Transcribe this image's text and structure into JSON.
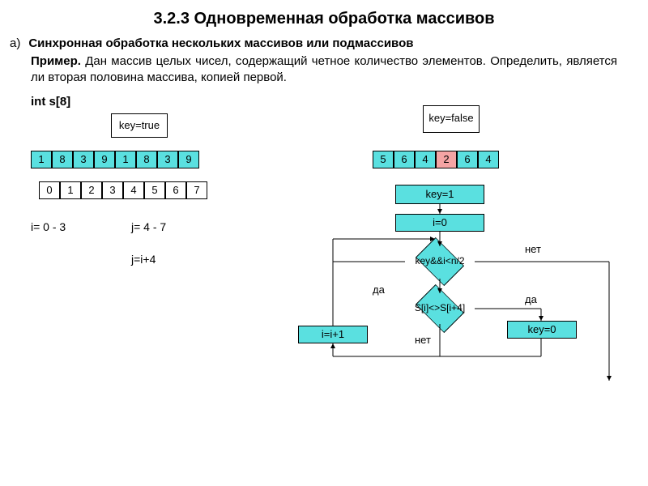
{
  "title": "3.2.3 Одновременная обработка массивов",
  "item_marker": "а)",
  "subtitle": "Синхронная обработка нескольких массивов или подмассивов",
  "example_label": "Пример.",
  "example_text": "Дан массив целых чисел, содержащий четное количество элементов. Определить, является ли вторая половина массива, копией первой.",
  "int_decl": "int s[8]",
  "key_true_label": "key=true",
  "key_false_label": "key=false",
  "array1": [
    "1",
    "8",
    "3",
    "9",
    "1",
    "8",
    "3",
    "9"
  ],
  "indices": [
    "0",
    "1",
    "2",
    "3",
    "4",
    "5",
    "6",
    "7"
  ],
  "array2": [
    "5",
    "6",
    "4",
    "2",
    "6",
    "4"
  ],
  "array2_highlight_index": 3,
  "i_range": "i= 0 - 3",
  "j_range": "j= 4 - 7",
  "j_formula": "j=i+4",
  "flow": {
    "key1": "key=1",
    "i0": "i=0",
    "cond1": "key&&i<n/2",
    "cond2": "S[i]<>S[i+4]",
    "inc": "i=i+1",
    "key0": "key=0",
    "yes": "да",
    "no": "нет"
  },
  "colors": {
    "cyan": "#5ae0e0",
    "pink": "#f4a4a4",
    "border": "#000000",
    "bg": "#ffffff"
  }
}
